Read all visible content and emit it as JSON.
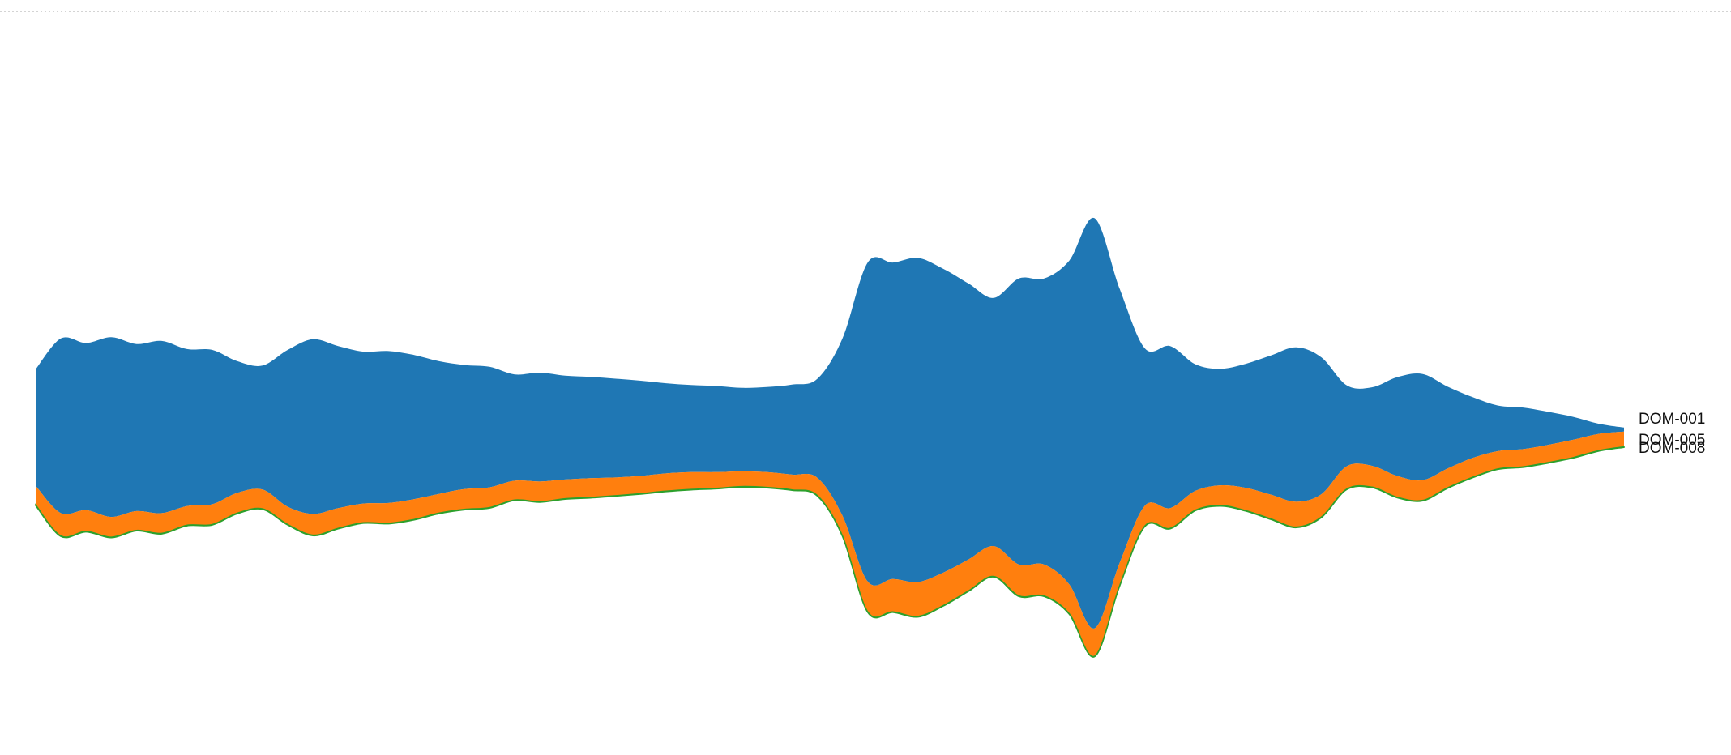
{
  "header": {
    "cropped_text": ""
  },
  "chart_data": {
    "type": "area",
    "layout": "streamgraph",
    "title": "",
    "xlabel": "",
    "ylabel": "",
    "grid": false,
    "legend": "inline-right",
    "x": [
      0,
      1,
      2,
      3,
      4,
      5,
      6,
      7,
      8,
      9,
      10,
      11,
      12,
      13,
      14,
      15,
      16,
      17,
      18,
      19,
      20,
      21,
      22,
      23,
      24,
      25,
      26,
      27,
      28,
      29,
      30,
      31,
      32,
      33,
      34,
      35,
      36,
      37,
      38,
      39,
      40,
      41,
      42,
      43,
      44,
      45,
      46,
      47,
      48,
      49,
      50,
      51,
      52,
      53,
      54,
      55,
      56,
      57,
      58,
      59,
      60,
      61,
      62,
      63
    ],
    "series": [
      {
        "name": "DOM-001",
        "color": "#1f77b4",
        "values": [
          230,
          345,
          330,
          355,
          330,
          340,
          310,
          305,
          260,
          245,
          310,
          345,
          320,
          300,
          300,
          285,
          262,
          245,
          238,
          210,
          215,
          205,
          200,
          195,
          188,
          178,
          172,
          170,
          165,
          168,
          178,
          195,
          350,
          630,
          625,
          640,
          600,
          545,
          490,
          565,
          565,
          640,
          810,
          540,
          310,
          320,
          250,
          230,
          245,
          275,
          305,
          270,
          160,
          155,
          195,
          210,
          162,
          120,
          90,
          82,
          65,
          45,
          20,
          8
        ],
        "label": "DOM-001"
      },
      {
        "name": "DOM-005",
        "color": "#ff7f0e",
        "values": [
          38,
          45,
          42,
          40,
          38,
          40,
          38,
          40,
          40,
          38,
          35,
          42,
          40,
          38,
          40,
          40,
          38,
          40,
          40,
          38,
          40,
          38,
          38,
          36,
          35,
          35,
          34,
          32,
          30,
          30,
          30,
          35,
          40,
          60,
          65,
          68,
          65,
          62,
          60,
          62,
          62,
          58,
          55,
          45,
          40,
          40,
          38,
          40,
          45,
          48,
          50,
          45,
          45,
          42,
          42,
          40,
          38,
          38,
          35,
          35,
          35,
          35,
          33,
          30
        ],
        "label": "DOM-005"
      },
      {
        "name": "DOM-008",
        "color": "#2ca02c",
        "values": [
          1,
          1,
          1,
          1,
          1,
          1,
          1,
          1,
          1,
          1,
          1,
          1,
          1,
          1,
          1,
          1,
          1,
          1,
          1,
          1,
          1,
          1,
          1,
          1,
          1,
          1,
          1,
          1,
          1,
          1,
          1,
          1,
          1,
          1,
          1,
          1,
          1,
          1,
          1,
          1,
          1,
          1,
          1,
          1,
          1,
          1,
          1,
          1,
          1,
          1,
          1,
          1,
          1,
          1,
          1,
          1,
          1,
          1,
          1,
          1,
          1,
          1,
          1,
          1
        ],
        "label": "DOM-008"
      }
    ]
  }
}
